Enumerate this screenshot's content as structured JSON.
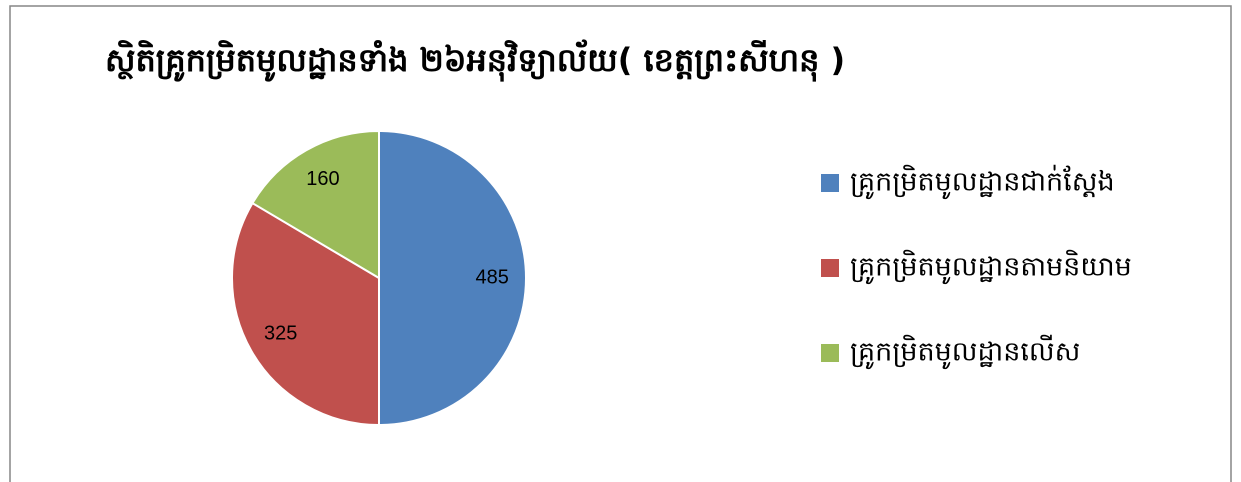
{
  "chart_data": {
    "type": "pie",
    "title": "ស្ថិតិគ្រូកម្រិតមូលដ្ឋានទាំង ២៦អនុវិទ្យាល័យ( ខេត្តព្រះសីហនុ )",
    "categories": [
      "គ្រូកម្រិតមូលដ្ឋានជាក់ស្តែង",
      "គ្រូកម្រិតមូលដ្ឋានតាមនិយាម",
      "គ្រូកម្រិតមូលដ្ឋានលើស"
    ],
    "values": [
      485,
      325,
      160
    ],
    "colors": [
      "#4f81bd",
      "#c0504d",
      "#9bbb59"
    ],
    "legend": "right"
  }
}
